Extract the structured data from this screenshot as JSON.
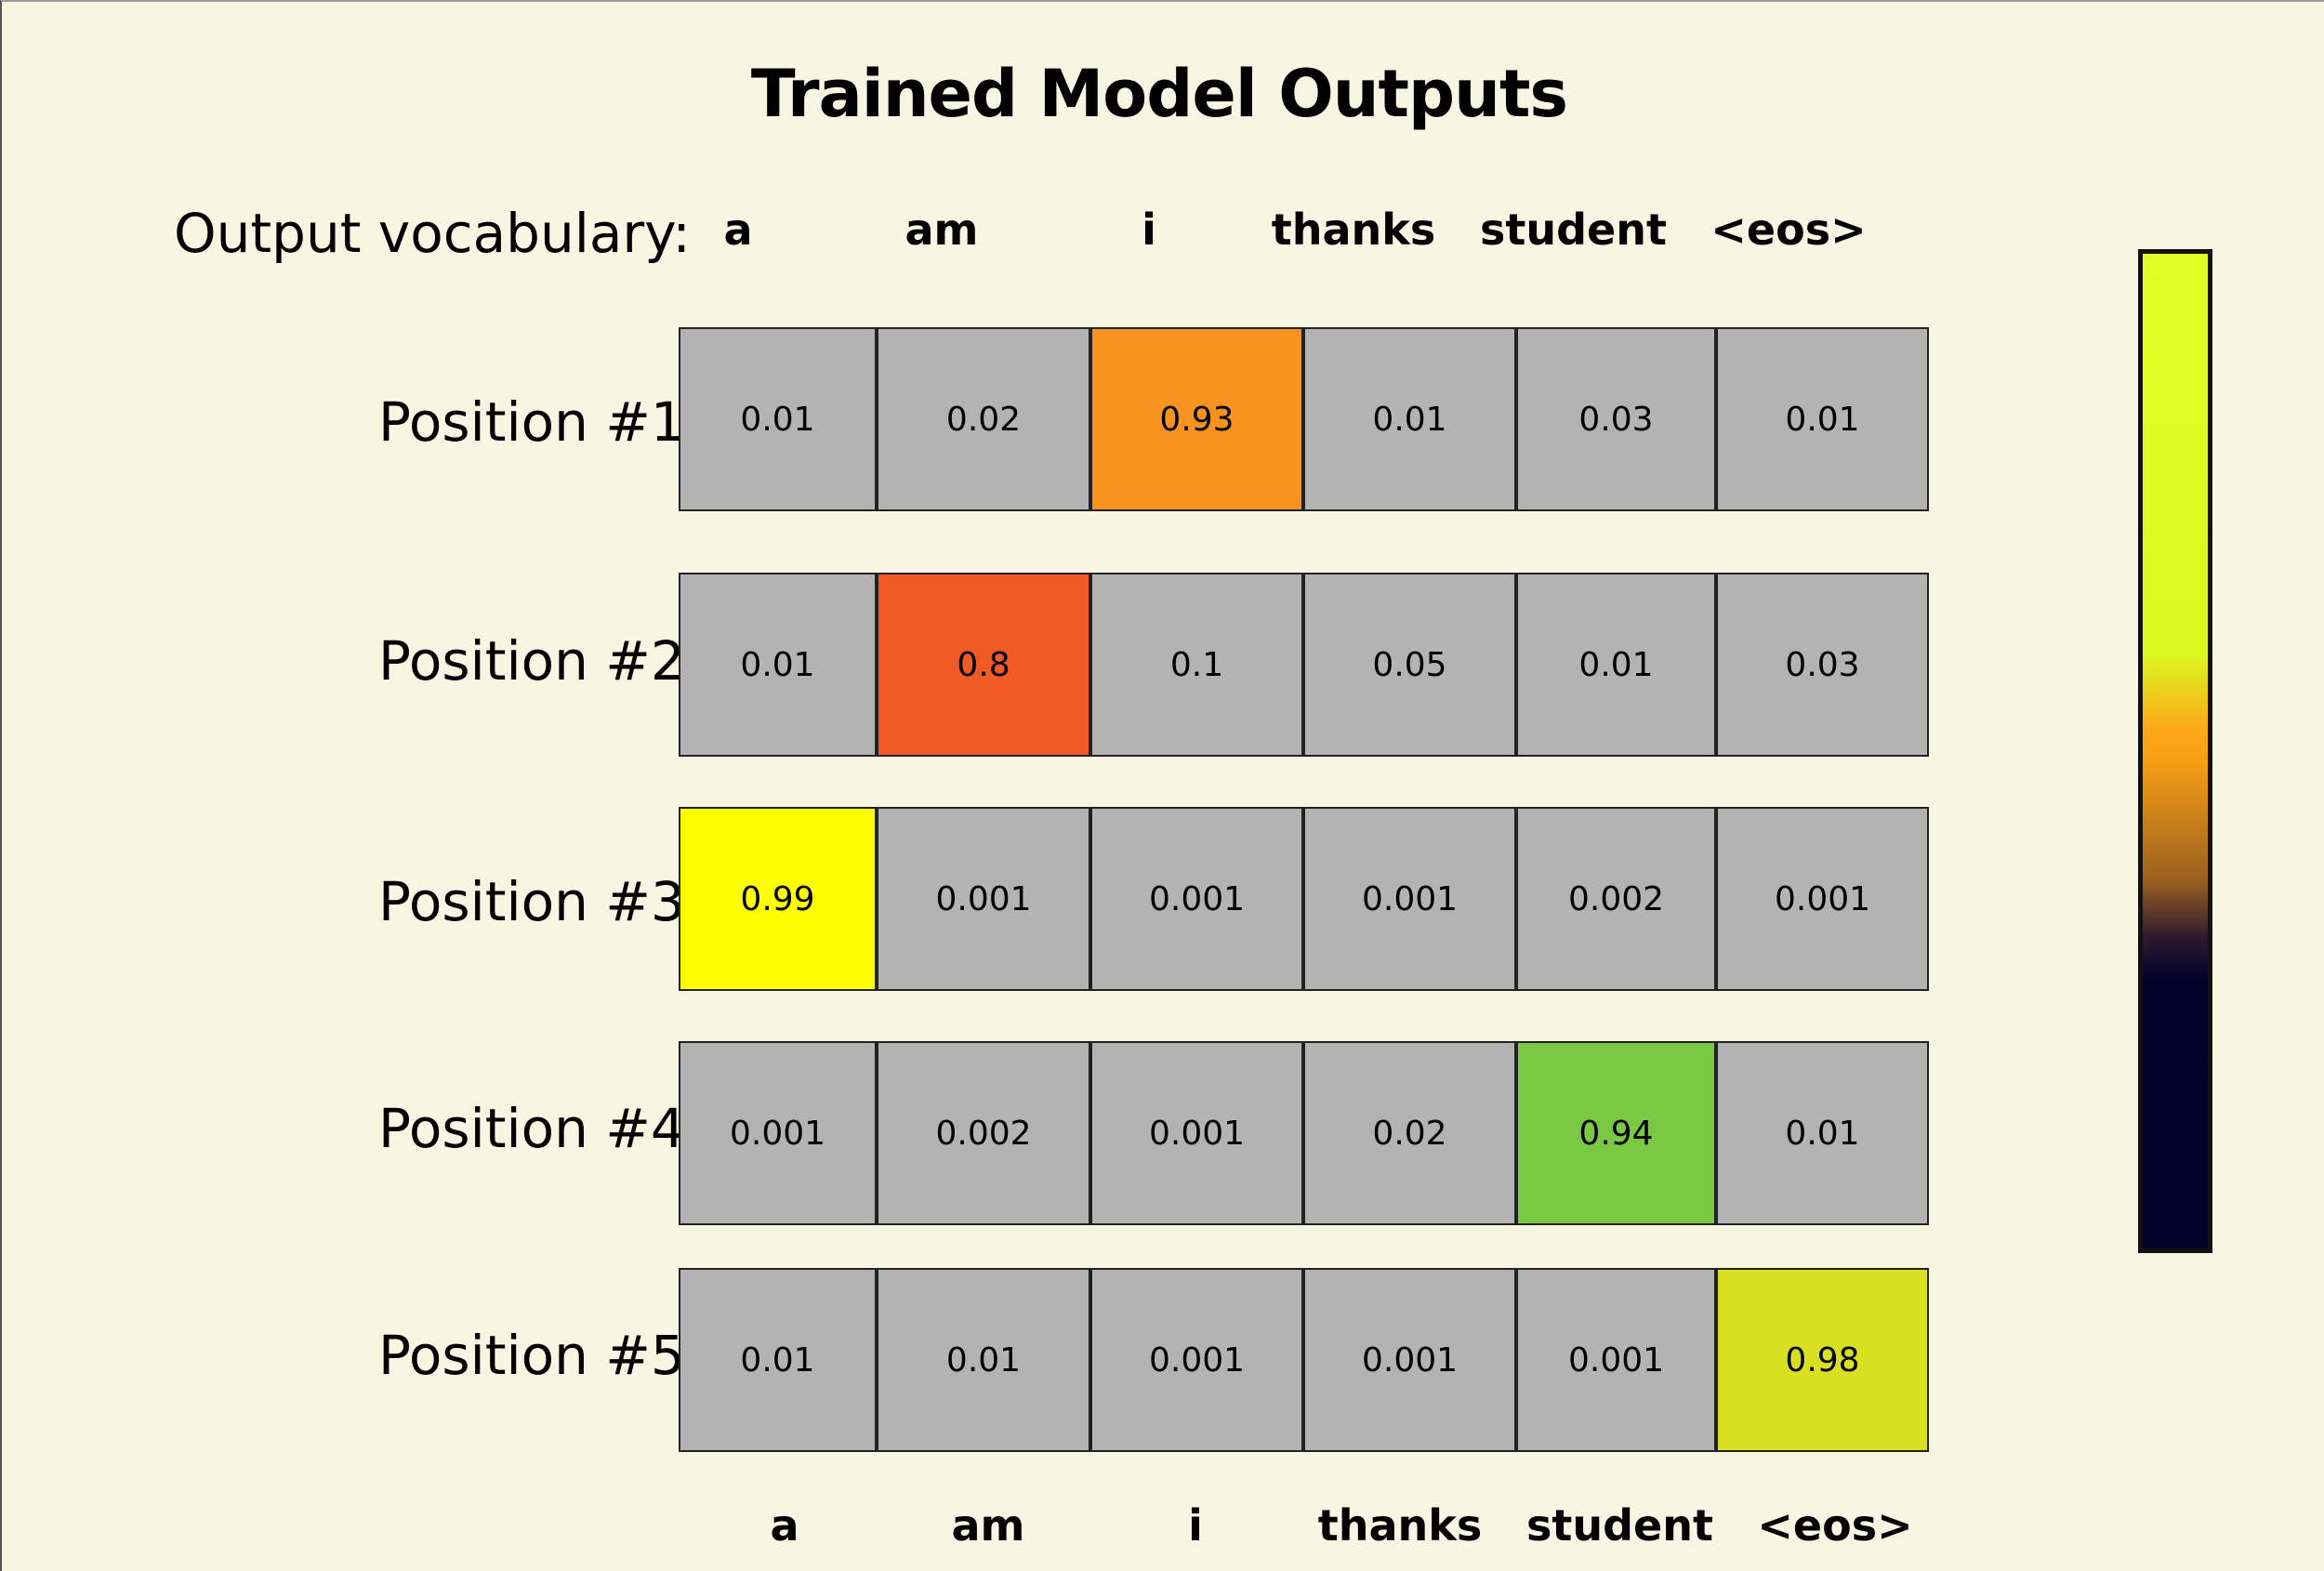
{
  "title": "Trained Model Outputs",
  "vocabulary_label": "Output vocabulary:",
  "vocabulary": [
    "a",
    "am",
    "i",
    "thanks",
    "student",
    "<eos>"
  ],
  "rows": [
    {
      "label": "Position #1",
      "values": [
        "0.01",
        "0.02",
        "0.93",
        "0.01",
        "0.03",
        "0.01"
      ],
      "highlight_index": 2,
      "highlight_color": "#f7931e"
    },
    {
      "label": "Position #2",
      "values": [
        "0.01",
        "0.8",
        "0.1",
        "0.05",
        "0.01",
        "0.03"
      ],
      "highlight_index": 1,
      "highlight_color": "#f15a24"
    },
    {
      "label": "Position #3",
      "values": [
        "0.99",
        "0.001",
        "0.001",
        "0.001",
        "0.002",
        "0.001"
      ],
      "highlight_index": 0,
      "highlight_color": "#ffff00"
    },
    {
      "label": "Position #4",
      "values": [
        "0.001",
        "0.002",
        "0.001",
        "0.02",
        "0.94",
        "0.01"
      ],
      "highlight_index": 4,
      "highlight_color": "#7ac943"
    },
    {
      "label": "Position #5",
      "values": [
        "0.01",
        "0.01",
        "0.001",
        "0.001",
        "0.001",
        "0.98"
      ],
      "highlight_index": 5,
      "highlight_color": "#d9e021"
    }
  ],
  "cell_color": "#b3b3b3",
  "background_color": "#f6f6e3",
  "colorbar": {
    "stops": [
      "#e0ff26",
      "#ffa619",
      "#02022a"
    ]
  }
}
